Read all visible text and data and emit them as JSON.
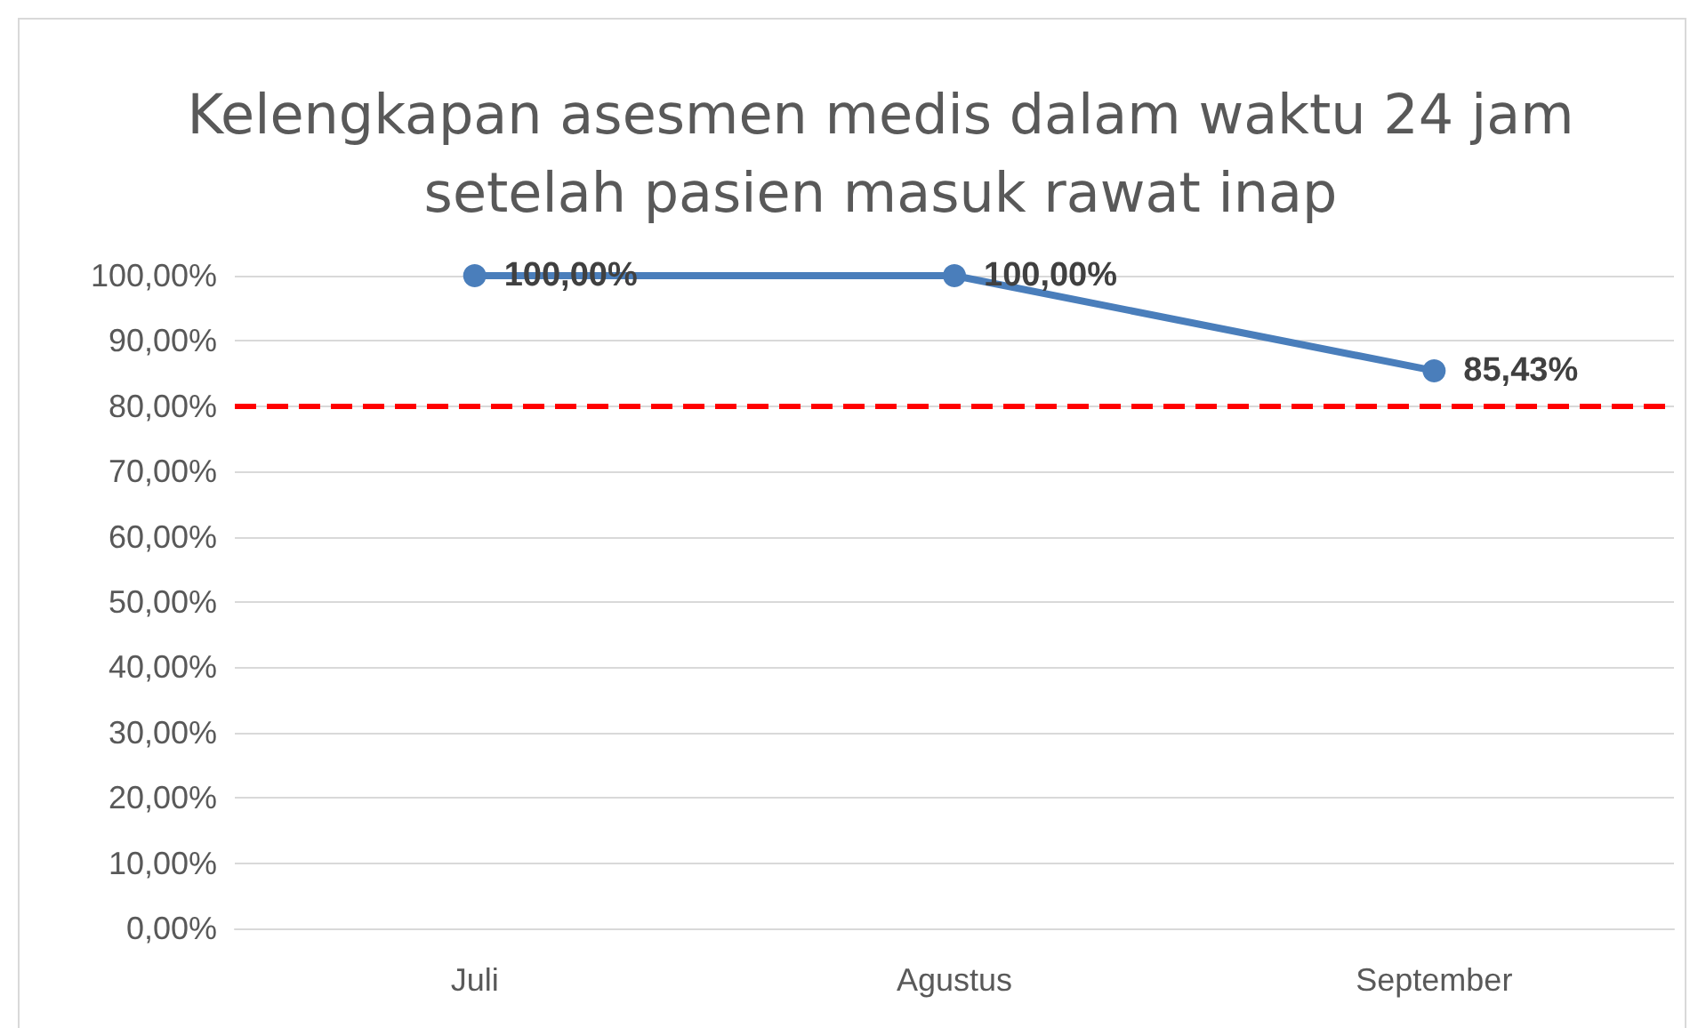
{
  "chart_data": {
    "type": "line",
    "title": "Kelengkapan asesmen medis dalam waktu 24 jam\nsetelah pasien masuk rawat inap",
    "categories": [
      "Juli",
      "Agustus",
      "September"
    ],
    "series": [
      {
        "color": "#4a7ebb",
        "values": [
          100,
          100,
          85.43
        ],
        "value_labels": [
          "100,00%",
          "100,00%",
          "85,43%"
        ]
      }
    ],
    "ylim": [
      0,
      100
    ],
    "yticks": [
      {
        "value": 0,
        "label": "0,00%"
      },
      {
        "value": 10,
        "label": "10,00%"
      },
      {
        "value": 20,
        "label": "20,00%"
      },
      {
        "value": 30,
        "label": "30,00%"
      },
      {
        "value": 40,
        "label": "40,00%"
      },
      {
        "value": 50,
        "label": "50,00%"
      },
      {
        "value": 60,
        "label": "60,00%"
      },
      {
        "value": 70,
        "label": "70,00%"
      },
      {
        "value": 80,
        "label": "80,00%"
      },
      {
        "value": 90,
        "label": "90,00%"
      },
      {
        "value": 100,
        "label": "100,00%"
      }
    ],
    "ref_lines": [
      {
        "axis": "y",
        "value": 80,
        "color": "#ff0000",
        "line_style": "dashed"
      }
    ],
    "grid": "y",
    "marker": "circle",
    "line_style": "solid"
  }
}
